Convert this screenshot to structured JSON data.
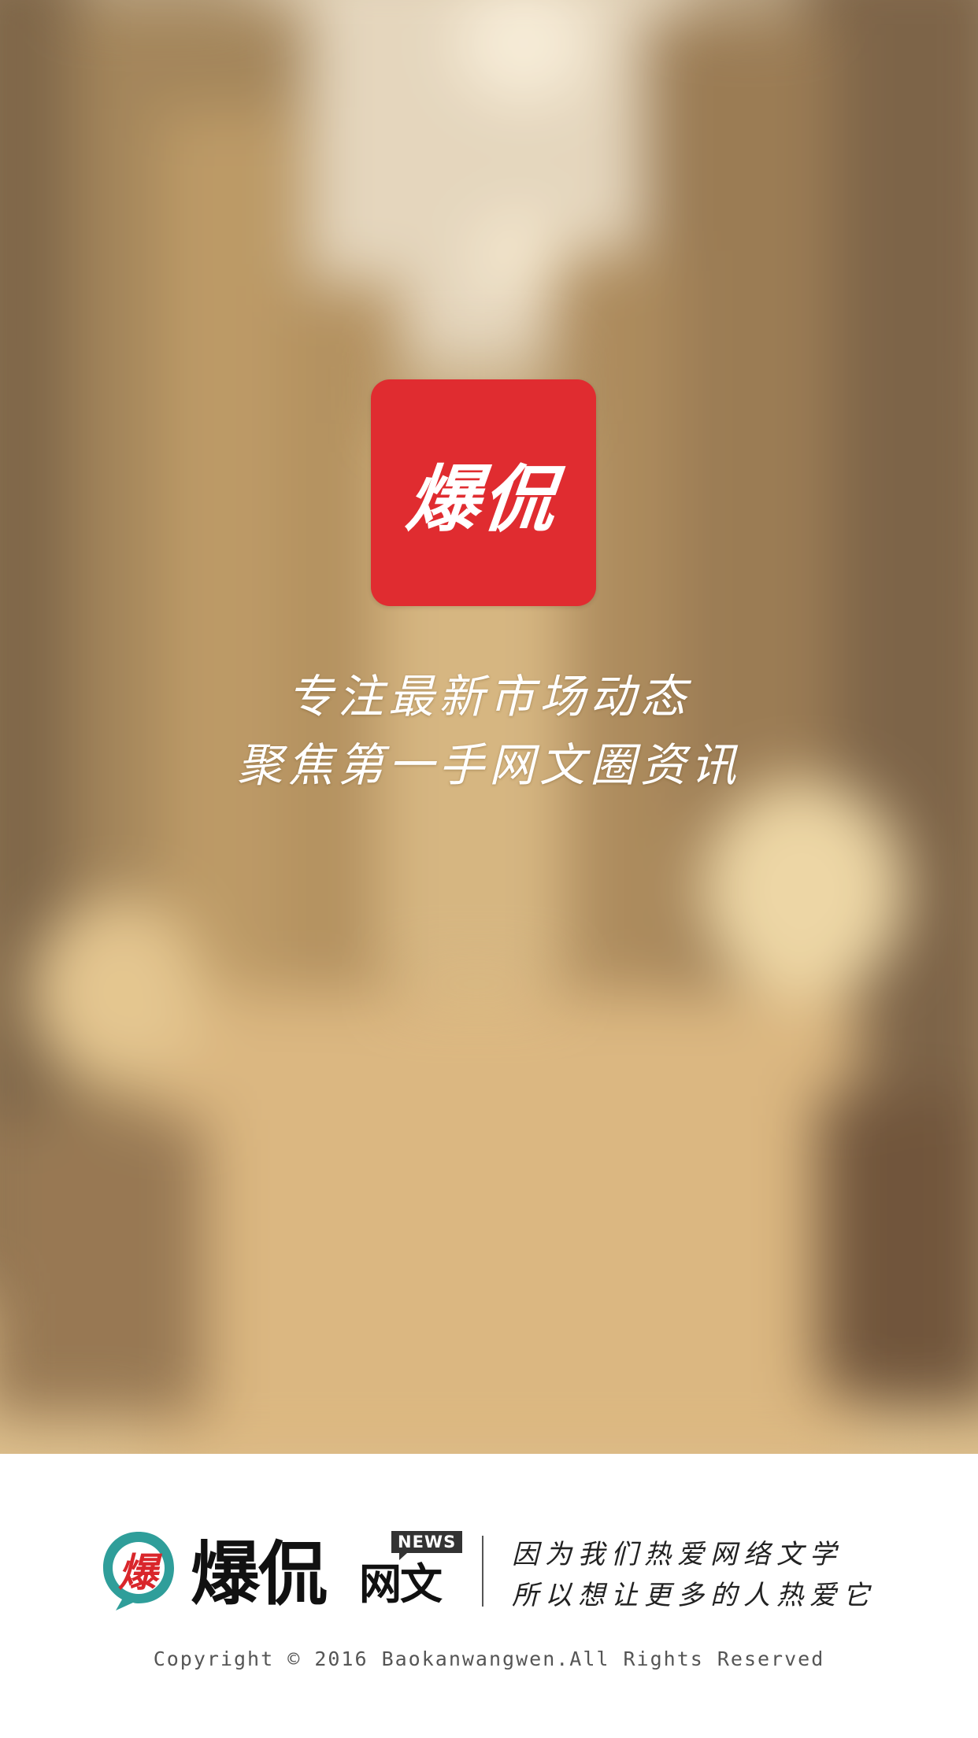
{
  "splash": {
    "app_icon_label": "爆侃",
    "slogan_line1": "专注最新市场动态",
    "slogan_line2": "聚焦第一手网文圈资讯",
    "icon_color": "#e02c30"
  },
  "footer": {
    "badge_char": "爆",
    "brand_name": "爆侃",
    "brand_sub": "网文",
    "news_tag": "NEWS",
    "tagline_line1": "因为我们热爱网络文学",
    "tagline_line2": "所以想让更多的人热爱它",
    "copyright": "Copyright © 2016 Baokanwangwen.All Rights Reserved",
    "badge_colors": {
      "teal": "#2f9e9a",
      "red": "#d9262b"
    }
  }
}
